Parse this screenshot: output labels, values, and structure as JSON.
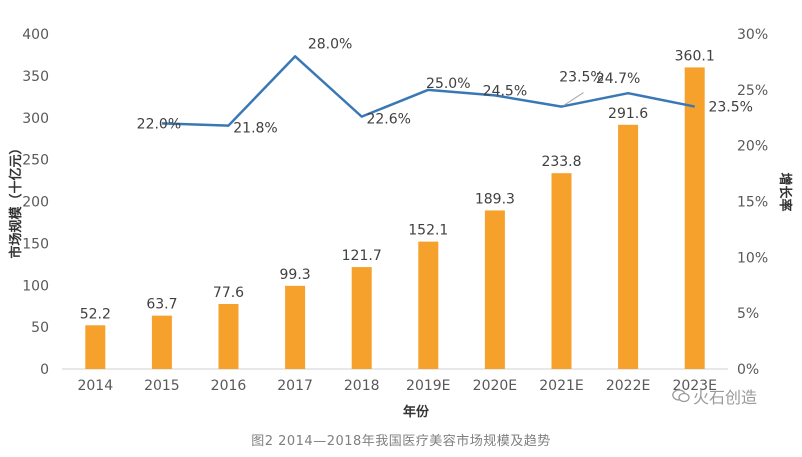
{
  "chart_data": {
    "type": "bar",
    "categories": [
      "2014",
      "2015",
      "2016",
      "2017",
      "2018",
      "2019E",
      "2020E",
      "2021E",
      "2022E",
      "2023E"
    ],
    "series": [
      {
        "type": "bar",
        "axis": "left",
        "values": [
          52.2,
          63.7,
          77.6,
          99.3,
          121.7,
          152.1,
          189.3,
          233.8,
          291.6,
          360.1
        ],
        "labels": [
          "52.2",
          "63.7",
          "77.6",
          "99.3",
          "121.7",
          "152.1",
          "189.3",
          "233.8",
          "291.6",
          "360.1"
        ]
      },
      {
        "type": "line",
        "axis": "right",
        "values": [
          null,
          22.0,
          21.8,
          28.0,
          22.6,
          25.0,
          24.5,
          23.5,
          24.7,
          23.5
        ],
        "labels": [
          null,
          "22.0%",
          "21.8%",
          "28.0%",
          "22.6%",
          "25.0%",
          "24.5%",
          "23.5%",
          "24.7%",
          "23.5%"
        ]
      }
    ],
    "xlabel": "年份",
    "ylabel": "市场规模（十亿元）",
    "y2label": "增长率",
    "ylim": [
      0,
      400
    ],
    "yticks": [
      "0",
      "50",
      "100",
      "150",
      "200",
      "250",
      "300",
      "350",
      "400"
    ],
    "y2lim": [
      0,
      30
    ],
    "y2ticks": [
      "0%",
      "5%",
      "10%",
      "15%",
      "20%",
      "25%",
      "30%"
    ],
    "bar_color": "#f5a12b",
    "line_color": "#3a78b5",
    "grid": false
  },
  "caption": "图2   2014—2018年我国医疗美容市场规模及趋势",
  "watermark": {
    "text": "火石创造",
    "icon": "wechat-icon"
  }
}
